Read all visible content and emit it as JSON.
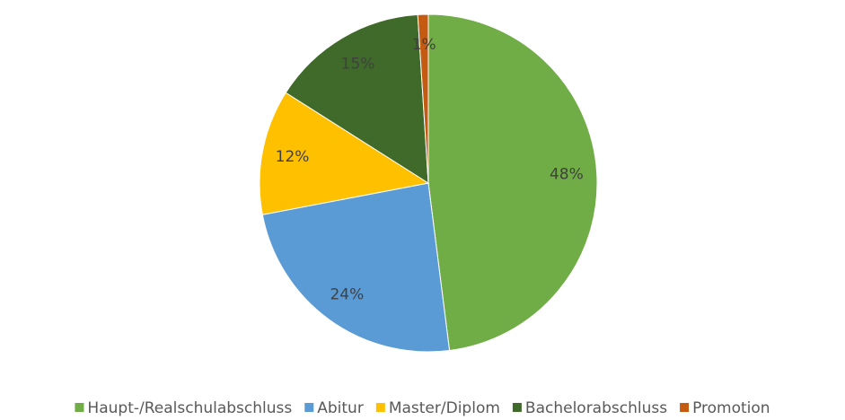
{
  "chart_data": {
    "type": "pie",
    "categories": [
      "Haupt-/Realschulabschluss",
      "Abitur",
      "Master/Diplom",
      "Bachelorabschluss",
      "Promotion"
    ],
    "values": [
      48,
      24,
      12,
      15,
      1
    ],
    "value_labels": [
      "48%",
      "24%",
      "12%",
      "15%",
      "1%"
    ],
    "colors": [
      "#70ad47",
      "#5b9bd5",
      "#ffc000",
      "#3f6a2a",
      "#c55a11"
    ],
    "legend": "bottom"
  }
}
